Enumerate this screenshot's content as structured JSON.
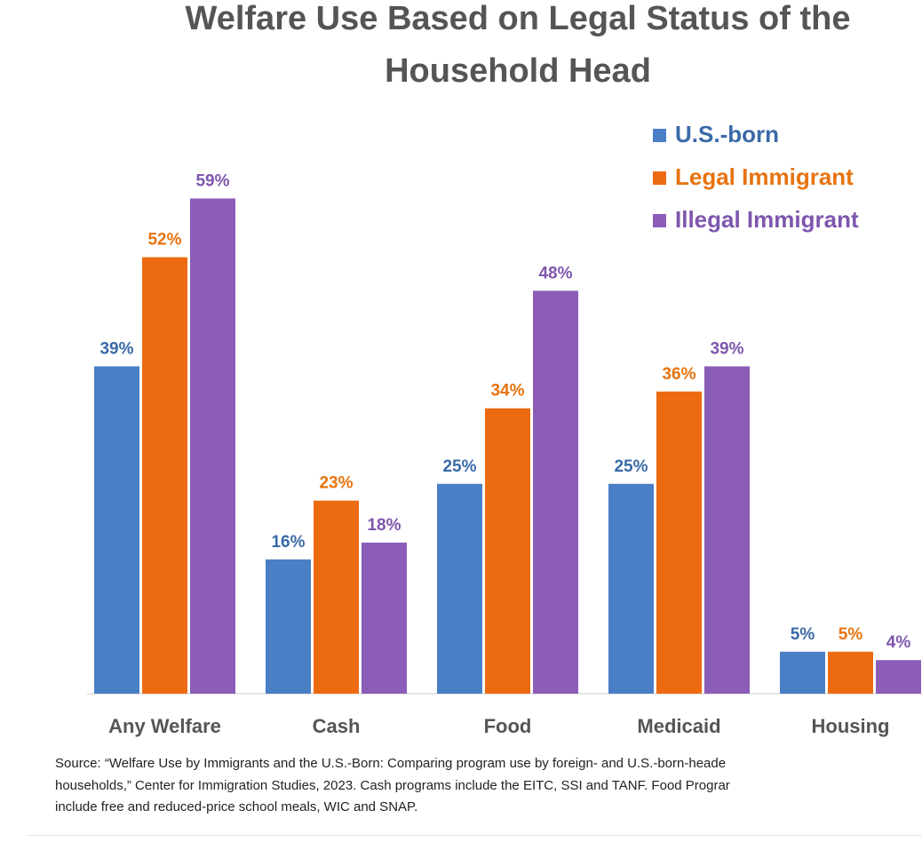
{
  "chart_data": {
    "type": "bar",
    "title": [
      "Welfare Use Based on Legal Status of the",
      "Household Head"
    ],
    "categories": [
      "Any Welfare",
      "Cash",
      "Food",
      "Medicaid",
      "Housing"
    ],
    "series": [
      {
        "name": "U.S.-born",
        "color": "#4a7fc6",
        "label_color": "#3a6aa8",
        "values": [
          39,
          16,
          25,
          25,
          5
        ],
        "labels": [
          "39%",
          "16%",
          "25%",
          "25%",
          "5%"
        ]
      },
      {
        "name": "Legal Immigrant",
        "color": "#ed6b10",
        "label_color": "#e8730f",
        "values": [
          52,
          23,
          34,
          36,
          5
        ],
        "labels": [
          "52%",
          "23%",
          "34%",
          "36%",
          "5%"
        ]
      },
      {
        "name": "Illegal Immigrant",
        "color": "#8b5db8",
        "label_color": "#7e56ad",
        "values": [
          59,
          18,
          48,
          39,
          4
        ],
        "labels": [
          "59%",
          "18%",
          "48%",
          "39%",
          "4%"
        ]
      }
    ],
    "ylim": [
      0,
      60
    ],
    "xlabel": "",
    "ylabel": "",
    "grid": false,
    "legend_position": "top-right"
  },
  "source_note": [
    "Source: “Welfare Use by Immigrants and the U.S.-Born: Comparing program use by foreign- and U.S.-born-heade",
    "households,” Center for Immigration Studies, 2023. Cash programs include the EITC, SSI and TANF.  Food Prograr",
    "include free and reduced-price school meals, WIC and SNAP."
  ]
}
